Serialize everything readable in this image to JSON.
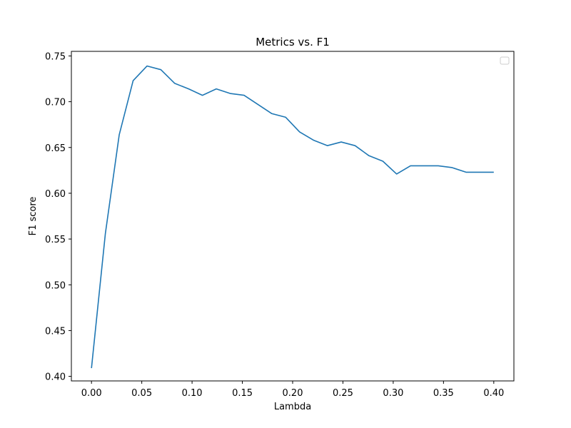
{
  "chart_data": {
    "type": "line",
    "title": "Metrics vs. F1",
    "xlabel": "Lambda",
    "ylabel": "F1 score",
    "xlim": [
      -0.02,
      0.42
    ],
    "ylim": [
      0.395,
      0.755
    ],
    "xticks": [
      "0.00",
      "0.05",
      "0.10",
      "0.15",
      "0.20",
      "0.25",
      "0.30",
      "0.35",
      "0.40"
    ],
    "yticks": [
      "0.40",
      "0.45",
      "0.50",
      "0.55",
      "0.60",
      "0.65",
      "0.70",
      "0.75"
    ],
    "grid": false,
    "legend": {
      "placement": "top-right",
      "entries": []
    },
    "series": [
      {
        "color": "#1f77b4",
        "x": [
          0.0,
          0.0138,
          0.0276,
          0.0414,
          0.0552,
          0.069,
          0.0828,
          0.0966,
          0.1103,
          0.1241,
          0.1379,
          0.1517,
          0.1655,
          0.1793,
          0.1931,
          0.2069,
          0.2207,
          0.2345,
          0.2483,
          0.2621,
          0.2759,
          0.2897,
          0.3034,
          0.3172,
          0.331,
          0.3448,
          0.3586,
          0.3724,
          0.3862,
          0.4
        ],
        "y": [
          0.409,
          0.556,
          0.664,
          0.723,
          0.739,
          0.735,
          0.72,
          0.714,
          0.707,
          0.714,
          0.709,
          0.707,
          0.697,
          0.687,
          0.683,
          0.667,
          0.658,
          0.652,
          0.656,
          0.652,
          0.641,
          0.635,
          0.621,
          0.63,
          0.63,
          0.63,
          0.628,
          0.623,
          0.623,
          0.623
        ]
      }
    ]
  }
}
